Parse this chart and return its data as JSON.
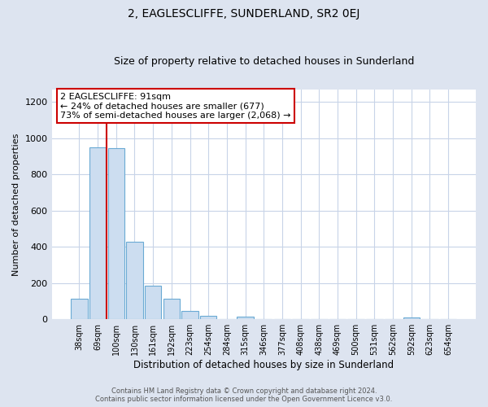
{
  "title": "2, EAGLESCLIFFE, SUNDERLAND, SR2 0EJ",
  "subtitle": "Size of property relative to detached houses in Sunderland",
  "xlabel": "Distribution of detached houses by size in Sunderland",
  "ylabel": "Number of detached properties",
  "bar_labels": [
    "38sqm",
    "69sqm",
    "100sqm",
    "130sqm",
    "161sqm",
    "192sqm",
    "223sqm",
    "254sqm",
    "284sqm",
    "315sqm",
    "346sqm",
    "377sqm",
    "408sqm",
    "438sqm",
    "469sqm",
    "500sqm",
    "531sqm",
    "562sqm",
    "592sqm",
    "623sqm",
    "654sqm"
  ],
  "bar_values": [
    115,
    950,
    945,
    430,
    185,
    115,
    45,
    20,
    0,
    15,
    0,
    0,
    0,
    0,
    0,
    0,
    0,
    0,
    10,
    0,
    0
  ],
  "bar_color": "#ccddf0",
  "bar_edge_color": "#6aaad4",
  "vline_x_index": 1.5,
  "vline_color": "#cc0000",
  "ylim": [
    0,
    1270
  ],
  "yticks": [
    0,
    200,
    400,
    600,
    800,
    1000,
    1200
  ],
  "annotation_title": "2 EAGLESCLIFFE: 91sqm",
  "annotation_line1": "← 24% of detached houses are smaller (677)",
  "annotation_line2": "73% of semi-detached houses are larger (2,068) →",
  "annotation_box_color": "#cc0000",
  "footer_line1": "Contains HM Land Registry data © Crown copyright and database right 2024.",
  "footer_line2": "Contains public sector information licensed under the Open Government Licence v3.0.",
  "fig_bg_color": "#dde4f0",
  "plot_bg_color": "#ffffff",
  "grid_color": "#c8d4e8"
}
